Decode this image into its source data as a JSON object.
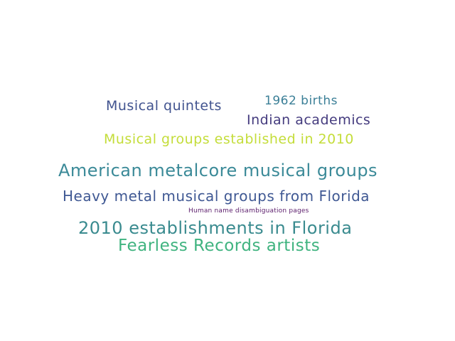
{
  "word_cloud": {
    "words": [
      {
        "text": "American metalcore musical groups",
        "color": "#3b8a98"
      },
      {
        "text": "2010 establishments in Florida",
        "color": "#3a8b8f"
      },
      {
        "text": "Fearless Records artists",
        "color": "#3fb37f"
      },
      {
        "text": "Heavy metal musical groups from Florida",
        "color": "#3f5893"
      },
      {
        "text": "Musical groups established in 2010",
        "color": "#c4dd3a"
      },
      {
        "text": "Musical quintets",
        "color": "#41538f"
      },
      {
        "text": "Indian academics",
        "color": "#443b7e"
      },
      {
        "text": "1962 births",
        "color": "#3b7f97"
      },
      {
        "text": "Human name disambiguation pages",
        "color": "#5a1b6a"
      }
    ]
  }
}
